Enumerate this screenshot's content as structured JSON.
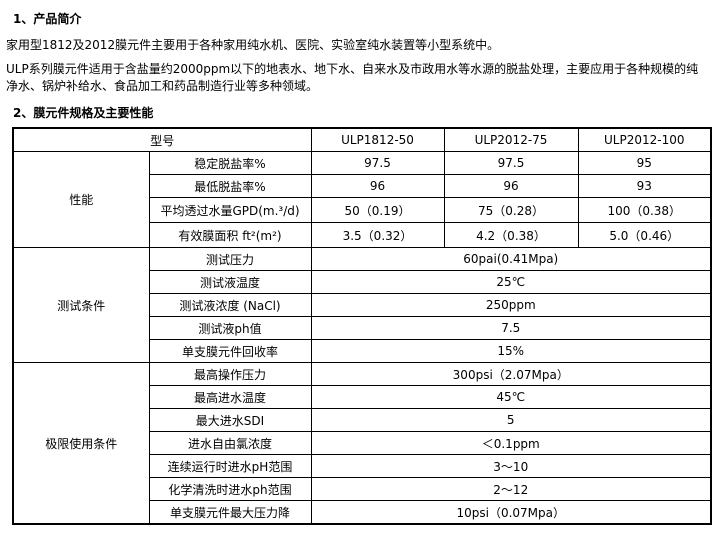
{
  "section1": {
    "title": "1、产品简介",
    "para1": "家用型1812及2012膜元件主要用于各种家用纯水机、医院、实验室纯水装置等小型系统中。",
    "para2": "ULP系列膜元件适用于含盐量约2000ppm以下的地表水、地下水、自来水及市政用水等水源的脱盐处理，主要应用于各种规模的纯净水、锅炉补给水、食品加工和药品制造行业等多种领域。"
  },
  "section2": {
    "title": "2、膜元件规格及主要性能"
  },
  "table": {
    "header": {
      "label": "型号",
      "models": [
        "ULP1812-50",
        "ULP2012-75",
        "ULP2012-100"
      ]
    },
    "performance": {
      "group": "性能",
      "rows": [
        {
          "label": "稳定脱盐率%",
          "values": [
            "97.5",
            "97.5",
            "95"
          ]
        },
        {
          "label": "最低脱盐率%",
          "values": [
            "96",
            "96",
            "93"
          ]
        },
        {
          "label": "平均透过水量GPD(m.³/d)",
          "values": [
            "50（0.19）",
            "75（0.28）",
            "100（0.38）"
          ]
        },
        {
          "label": "有效膜面积 ft²(m²)",
          "values": [
            "3.5（0.32）",
            "4.2（0.38）",
            "5.0（0.46）"
          ]
        }
      ]
    },
    "test": {
      "group": "测试条件",
      "rows": [
        {
          "label": "测试压力",
          "value": "60pai(0.41Mpa)"
        },
        {
          "label": "测试液温度",
          "value": "25℃"
        },
        {
          "label": "测试液浓度 (NaCl)",
          "value": "250ppm"
        },
        {
          "label": "测试液ph值",
          "value": "7.5"
        },
        {
          "label": "单支膜元件回收率",
          "value": "15%"
        }
      ]
    },
    "limits": {
      "group": "极限使用条件",
      "rows": [
        {
          "label": "最高操作压力",
          "value": "300psi（2.07Mpa）"
        },
        {
          "label": "最高进水温度",
          "value": "45℃"
        },
        {
          "label": "最大进水SDI",
          "value": "5"
        },
        {
          "label": "进水自由氯浓度",
          "value": "＜0.1ppm"
        },
        {
          "label": "连续运行时进水pH范围",
          "value": "3～10"
        },
        {
          "label": "化学清洗时进水ph范围",
          "value": "2～12"
        },
        {
          "label": "单支膜元件最大压力降",
          "value": "10psi（0.07Mpa）"
        }
      ]
    }
  }
}
